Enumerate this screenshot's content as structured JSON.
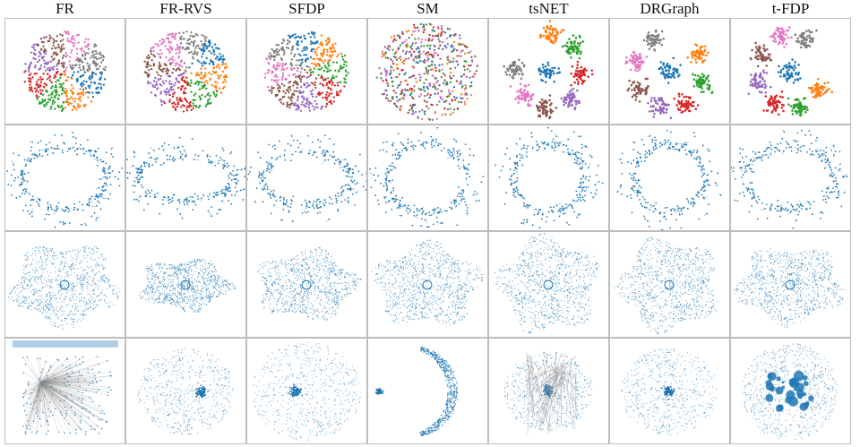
{
  "methods": [
    "FR",
    "FR-RVS",
    "SFDP",
    "SM",
    "tsNET",
    "DRGraph",
    "t-FDP"
  ],
  "cluster_colors": [
    "#1f77b4",
    "#ff7f0e",
    "#2ca02c",
    "#d62728",
    "#9467bd",
    "#8c564b",
    "#e377c2",
    "#7f7f7f"
  ],
  "node_color": "#1f77b4",
  "edge_color": "#999999"
}
